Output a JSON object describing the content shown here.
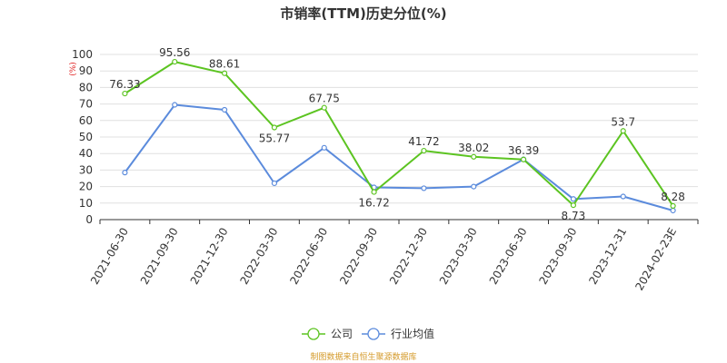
{
  "chart_data": {
    "type": "line",
    "title": "市销率(TTM)历史分位(%)",
    "ylabel": "(%)",
    "ylim": [
      0,
      100
    ],
    "yticks": [
      0,
      10,
      20,
      30,
      40,
      50,
      60,
      70,
      80,
      90,
      100
    ],
    "categories": [
      "2021-06-30",
      "2021-09-30",
      "2021-12-30",
      "2022-03-30",
      "2022-06-30",
      "2022-09-30",
      "2022-12-30",
      "2023-03-30",
      "2023-06-30",
      "2023-09-30",
      "2023-12-31",
      "2024-02-23E"
    ],
    "series": [
      {
        "name": "公司",
        "color": "#5cc421",
        "values": [
          76.33,
          95.56,
          88.61,
          55.77,
          67.75,
          16.72,
          41.72,
          38.02,
          36.39,
          8.73,
          53.7,
          8.28
        ],
        "labels": [
          "76.33",
          "95.56",
          "88.61",
          "55.77",
          "67.75",
          "16.72",
          "41.72",
          "38.02",
          "36.39",
          "8.73",
          "53.7",
          "8.28"
        ]
      },
      {
        "name": "行业均值",
        "color": "#5b8bdc",
        "values": [
          28.5,
          69.5,
          66.5,
          22.0,
          43.5,
          19.5,
          19.0,
          20.0,
          36.5,
          12.5,
          14.0,
          5.5
        ]
      }
    ],
    "grid": true,
    "legend_position": "bottom"
  },
  "source_text": "制图数据来自恒生聚源数据库",
  "source_color": "#d49a2a",
  "unit_color": "#e02020"
}
